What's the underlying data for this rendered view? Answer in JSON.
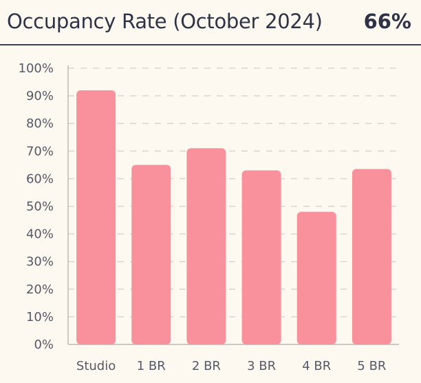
{
  "header": {
    "title": "Occupancy Rate (October 2024)",
    "kpi_value": "66%"
  },
  "colors": {
    "bar": "#f8919c",
    "grid": "#d9d5cf",
    "axis": "#bdb9b2",
    "text": "#555a66",
    "background": "#fdf8f0"
  },
  "chart_data": {
    "type": "bar",
    "title": "Occupancy Rate (October 2024)",
    "xlabel": "",
    "ylabel": "",
    "categories": [
      "Studio",
      "1 BR",
      "2 BR",
      "3 BR",
      "4 BR",
      "5 BR"
    ],
    "values": [
      92,
      65,
      71,
      63,
      48,
      63.5
    ],
    "ylim": [
      0,
      100
    ],
    "y_ticks": [
      "0%",
      "10%",
      "20%",
      "30%",
      "40%",
      "50%",
      "60%",
      "70%",
      "80%",
      "90%",
      "100%"
    ],
    "grid": true,
    "grid_style": "dashed",
    "legend": "none"
  }
}
